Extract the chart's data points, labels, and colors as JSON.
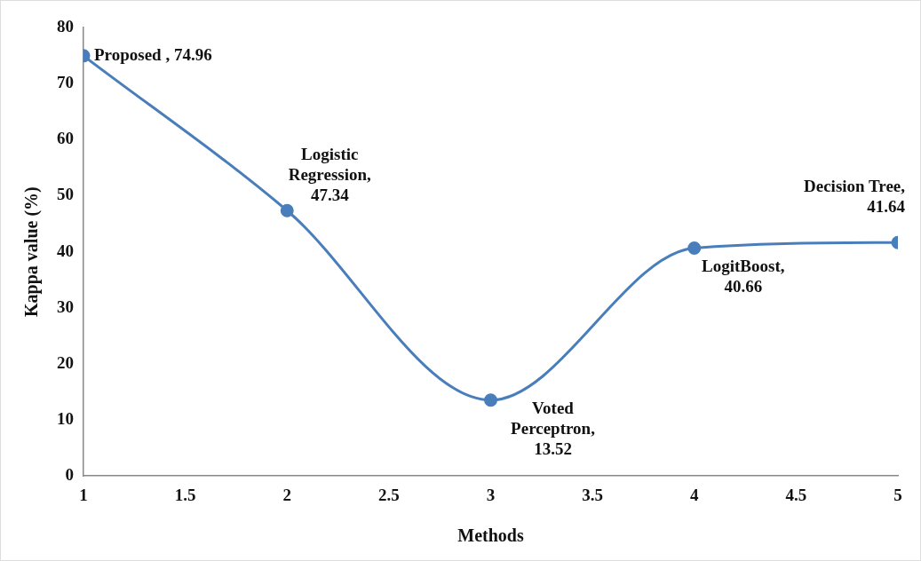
{
  "chart_data": {
    "type": "line",
    "xlabel": "Methods",
    "ylabel": "Kappa value (%)",
    "x": [
      1,
      2,
      3,
      4,
      5
    ],
    "series": [
      {
        "color": "#4a7ebb",
        "values": [
          74.96,
          47.34,
          13.52,
          40.66,
          41.64
        ]
      }
    ],
    "xlim": [
      1,
      5
    ],
    "xticks": [
      1,
      1.5,
      2,
      2.5,
      3,
      3.5,
      4,
      4.5,
      5
    ],
    "ylim": [
      0,
      80
    ],
    "yticks": [
      0,
      10,
      20,
      30,
      40,
      50,
      60,
      70,
      80
    ],
    "grid": false,
    "legend": false,
    "marker": "circle",
    "line_style": "solid",
    "annotations": [
      {
        "text": "Proposed , 74.96",
        "x": 1,
        "y": 74.96
      },
      {
        "text": "Logistic\nRegression,\n47.34",
        "x": 2,
        "y": 47.34
      },
      {
        "text": "Voted\nPerceptron,\n13.52",
        "x": 3,
        "y": 13.52
      },
      {
        "text": "LogitBoost,\n40.66",
        "x": 4,
        "y": 40.66
      },
      {
        "text": "Decision Tree,\n41.64",
        "x": 5,
        "y": 41.64
      }
    ]
  }
}
